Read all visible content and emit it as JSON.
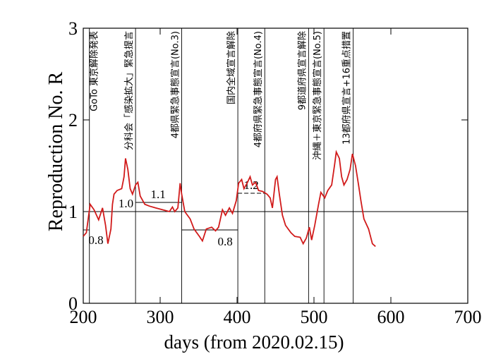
{
  "chart_data": {
    "type": "line",
    "xlabel": "days   (from 2020.02.15)",
    "ylabel": "Reproduction No.  R",
    "xlim": [
      200,
      700
    ],
    "xticks": [
      200,
      300,
      400,
      500,
      600,
      700
    ],
    "ylim": [
      0,
      3
    ],
    "yticks": [
      0,
      1,
      2,
      3
    ],
    "hline": 1,
    "series": [
      {
        "color": "#d11a1a",
        "x": [
          200,
          204,
          209,
          214,
          220,
          225,
          229,
          232,
          236,
          238,
          240,
          244,
          250,
          253,
          255,
          258,
          261,
          264,
          268,
          271,
          274,
          280,
          286,
          294,
          303,
          312,
          316,
          319,
          323,
          326,
          328,
          332,
          339,
          344,
          351,
          355,
          360,
          367,
          372,
          376,
          381,
          385,
          390,
          394,
          399,
          402,
          406,
          409,
          413,
          417,
          420,
          424,
          428,
          433,
          439,
          443,
          446,
          450,
          452,
          455,
          459,
          463,
          470,
          475,
          482,
          486,
          490,
          494,
          497,
          501,
          506,
          509,
          514,
          518,
          523,
          527,
          529,
          533,
          536,
          539,
          543,
          547,
          550,
          554,
          558,
          561,
          565,
          571,
          576,
          580
        ],
        "values": [
          0.73,
          0.77,
          1.08,
          1.02,
          0.91,
          1.04,
          0.85,
          0.65,
          0.81,
          1.08,
          1.19,
          1.23,
          1.25,
          1.38,
          1.58,
          1.46,
          1.25,
          1.19,
          1.29,
          1.32,
          1.17,
          1.08,
          1.06,
          1.04,
          1.02,
          1.0,
          1.05,
          1.0,
          1.04,
          1.31,
          1.19,
          1.0,
          0.92,
          0.81,
          0.73,
          0.68,
          0.81,
          0.83,
          0.79,
          0.83,
          1.02,
          0.96,
          1.04,
          0.98,
          1.12,
          1.31,
          1.35,
          1.25,
          1.31,
          1.38,
          1.29,
          1.32,
          1.23,
          1.22,
          1.19,
          1.15,
          1.04,
          1.35,
          1.38,
          1.19,
          0.96,
          0.85,
          0.77,
          0.73,
          0.72,
          0.65,
          0.71,
          0.83,
          0.69,
          0.85,
          1.08,
          1.21,
          1.15,
          1.23,
          1.29,
          1.52,
          1.65,
          1.58,
          1.38,
          1.29,
          1.35,
          1.46,
          1.63,
          1.5,
          1.29,
          1.12,
          0.92,
          0.81,
          0.65,
          0.62
        ]
      }
    ],
    "events": [
      {
        "day": 208,
        "label": "GoTo 東京解除発表"
      },
      {
        "day": 268,
        "label": "分科会「感染拡大」緊急提言"
      },
      {
        "day": 328,
        "label": "4都県緊急事態宣言(No.3)"
      },
      {
        "day": 401,
        "label": "国内全域宣言解除"
      },
      {
        "day": 436,
        "label": "4都府県緊急事態宣言(No.4)"
      },
      {
        "day": 493,
        "label": "9都道府県宣言解除"
      },
      {
        "day": 513,
        "label": "沖縄＋東京緊急事態宣言(No.5)"
      },
      {
        "day": 551,
        "label": "13都府県宣言+16重点措置"
      }
    ],
    "segments": [
      {
        "value": 0.8,
        "label": "0.8",
        "x": [
          200,
          208
        ]
      },
      {
        "value": 1.0,
        "label": "1.0",
        "x": [
          268,
          328
        ]
      },
      {
        "value": 1.1,
        "label": "1.1",
        "x": [
          268,
          328
        ]
      },
      {
        "value": 0.8,
        "label": "0.8",
        "x": [
          328,
          401
        ]
      },
      {
        "value": 1.2,
        "label": "1.2",
        "x": [
          401,
          436
        ]
      }
    ]
  }
}
